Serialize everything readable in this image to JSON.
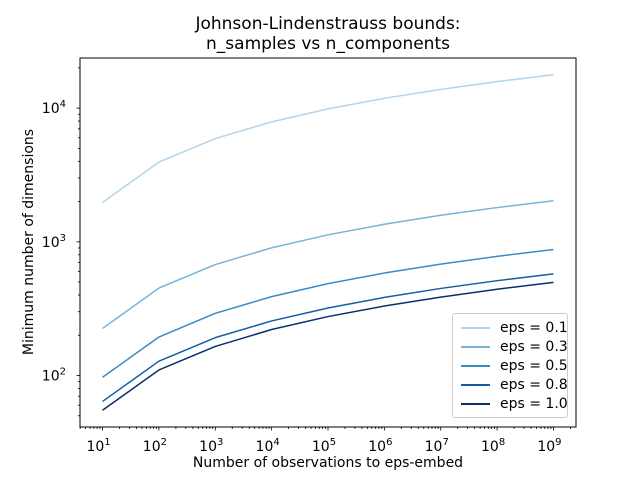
{
  "chart_data": {
    "type": "line",
    "title": "Johnson-Lindenstrauss bounds:\nn_samples vs n_components",
    "xlabel": "Number of observations to eps-embed",
    "ylabel": "Minimum number of dimensions",
    "xscale": "log",
    "yscale": "log",
    "grid": false,
    "legend_position": "lower right",
    "x": [
      10,
      100,
      1000,
      10000,
      100000,
      1000000,
      10000000,
      100000000,
      1000000000
    ],
    "series": [
      {
        "name": "eps = 0.1",
        "color": "#b6d4e9",
        "values": [
          1973,
          3947,
          5920,
          7894,
          9868,
          11841,
          13815,
          15789,
          17762
        ]
      },
      {
        "name": "eps = 0.3",
        "color": "#75b4d8",
        "values": [
          225,
          451,
          676,
          902,
          1128,
          1353,
          1579,
          1804,
          2030
        ]
      },
      {
        "name": "eps = 0.5",
        "color": "#3b8bc3",
        "values": [
          97,
          194,
          292,
          389,
          487,
          584,
          681,
          779,
          876
        ]
      },
      {
        "name": "eps = 0.8",
        "color": "#125ea6",
        "values": [
          64,
          128,
          192,
          256,
          320,
          384,
          448,
          512,
          576
        ]
      },
      {
        "name": "eps = 1.0",
        "color": "#08306b",
        "values": [
          55,
          110,
          165,
          221,
          276,
          331,
          386,
          442,
          497
        ]
      }
    ],
    "x_tick_exponents": [
      1,
      2,
      3,
      4,
      5,
      6,
      7,
      8,
      9
    ],
    "y_tick_exponents": [
      2,
      3,
      4
    ],
    "xlim_log": [
      0.6,
      9.4
    ],
    "ylim_log": [
      1.6149,
      4.3749
    ],
    "line_width": 1.5,
    "axis_color": "#000000",
    "background_color": "#ffffff"
  }
}
